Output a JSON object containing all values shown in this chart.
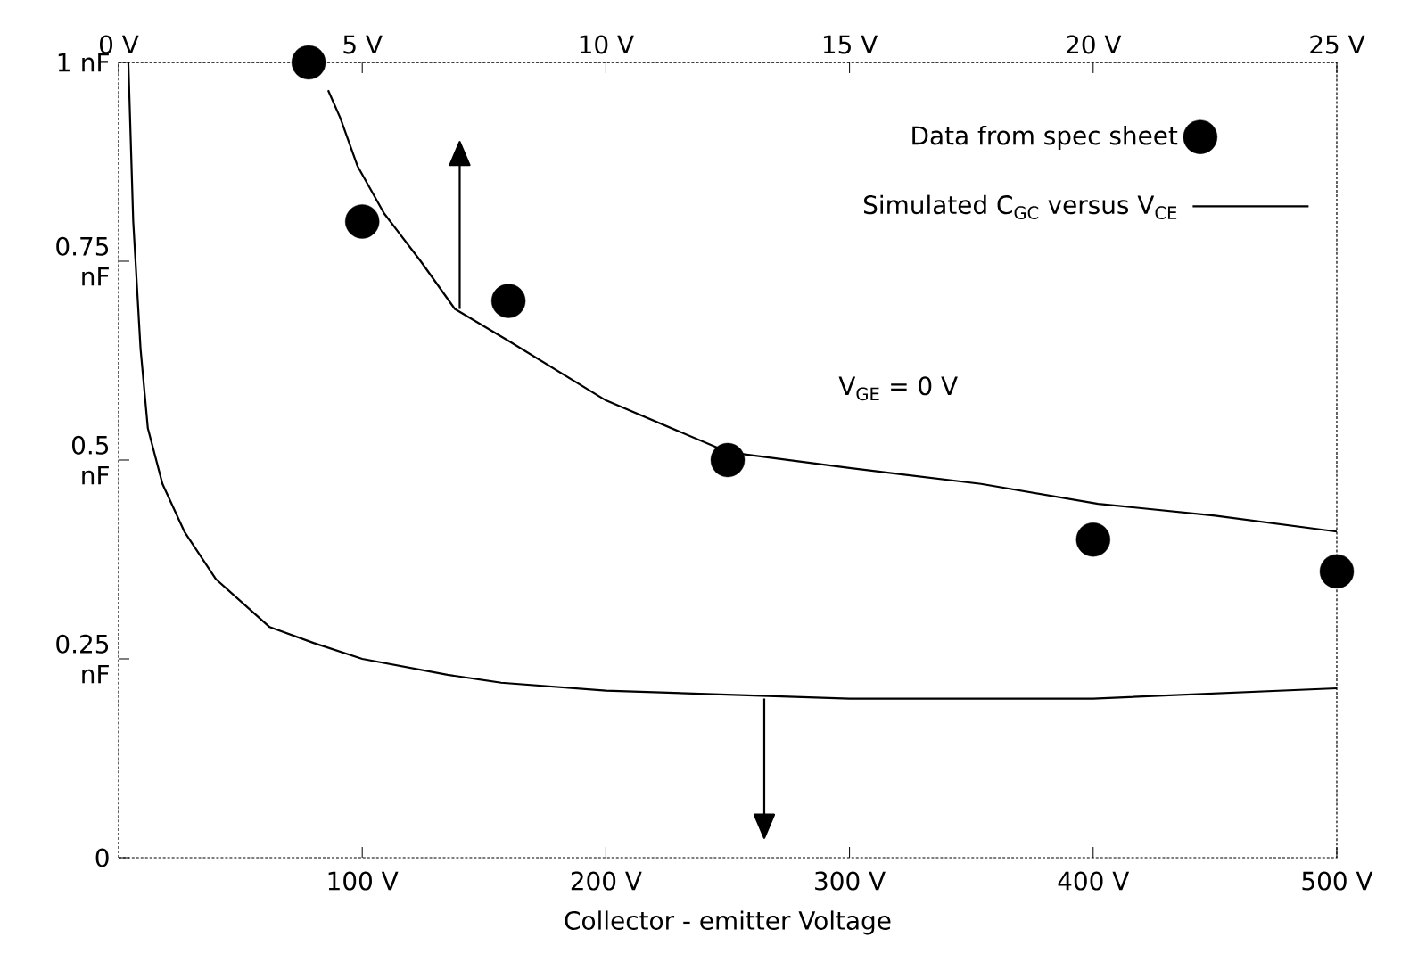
{
  "chart_data": {
    "type": "line",
    "xlabel": "Collector - emitter Voltage",
    "xlim": [
      0,
      500
    ],
    "xticks": [
      {
        "value": 100,
        "label": "100 V"
      },
      {
        "value": 200,
        "label": "200 V"
      },
      {
        "value": 300,
        "label": "300 V"
      },
      {
        "value": 400,
        "label": "400 V"
      },
      {
        "value": 500,
        "label": "500 V"
      }
    ],
    "x2lim": [
      0,
      25
    ],
    "x2ticks": [
      {
        "value": 0,
        "label": "0 V"
      },
      {
        "value": 5,
        "label": "5 V"
      },
      {
        "value": 10,
        "label": "10 V"
      },
      {
        "value": 15,
        "label": "15 V"
      },
      {
        "value": 20,
        "label": "20 V"
      },
      {
        "value": 25,
        "label": "25 V"
      }
    ],
    "ylim": [
      0,
      1
    ],
    "yticks": [
      {
        "value": 0,
        "label": "0"
      },
      {
        "value": 0.25,
        "label": "0.25 nF"
      },
      {
        "value": 0.5,
        "label": "0.5 nF"
      },
      {
        "value": 0.75,
        "label": "0.75 nF"
      },
      {
        "value": 1,
        "label": "1 nF"
      }
    ],
    "legend": "top right",
    "annotations": [
      "V$_{GE}$ = 0 V"
    ],
    "series": [
      {
        "name": "Data from spec sheet",
        "type": "scatter",
        "axis": "x2",
        "color": "#000000",
        "x": [
          3.9,
          5,
          8,
          12.5,
          20,
          25
        ],
        "values": [
          1.0,
          0.8,
          0.7,
          0.5,
          0.4,
          0.36
        ]
      },
      {
        "name": "Simulated C$_{GC}$ versus V$_{CE}$",
        "type": "line",
        "axis": "x2",
        "color": "#000000",
        "x": [
          4.3,
          4.55,
          4.9,
          5.45,
          6.2,
          6.9,
          8.0,
          10,
          12.5,
          15,
          17.7,
          20.1,
          22.5,
          25
        ],
        "values": [
          0.965,
          0.93,
          0.87,
          0.81,
          0.75,
          0.69,
          0.65,
          0.575,
          0.51,
          0.49,
          0.47,
          0.445,
          0.43,
          0.41
        ]
      },
      {
        "type": "line",
        "color": "#000000",
        "x": [
          4,
          6,
          9,
          12,
          18,
          27,
          40,
          62,
          80,
          100,
          135,
          157,
          200,
          250,
          300,
          354,
          400,
          500
        ],
        "values": [
          1.0,
          0.8,
          0.64,
          0.54,
          0.47,
          0.41,
          0.35,
          0.29,
          0.27,
          0.25,
          0.23,
          0.22,
          0.21,
          0.205,
          0.2,
          0.2,
          0.2,
          0.213
        ]
      }
    ]
  }
}
